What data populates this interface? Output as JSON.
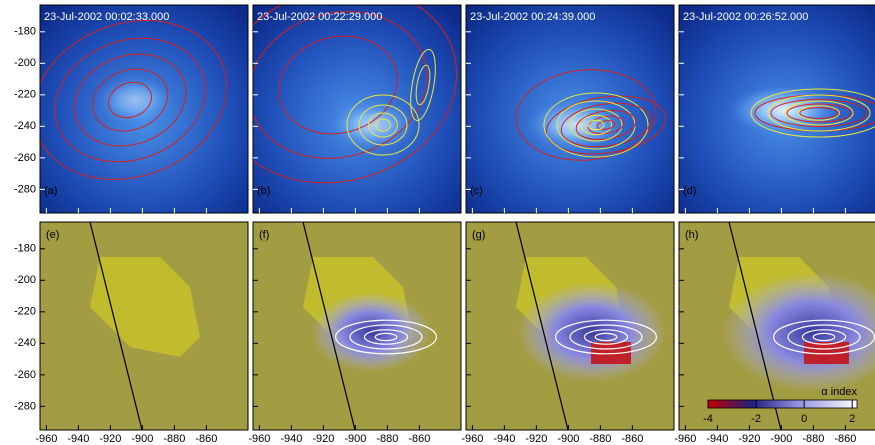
{
  "panels_top": [
    {
      "time": "23-Jul-2002 00:02:33.000",
      "label": "(a)"
    },
    {
      "time": "23-Jul-2002 00:22:29.000",
      "label": "(b)"
    },
    {
      "time": "23-Jul-2002 00:24:39.000",
      "label": "(c)"
    },
    {
      "time": "23-Jul-2002 00:26:52.000",
      "label": "(d)"
    }
  ],
  "panels_bottom": [
    {
      "label": "(e)"
    },
    {
      "label": "(f)"
    },
    {
      "label": "(g)"
    },
    {
      "label": "(h)"
    }
  ],
  "xlim": [
    -964,
    -834
  ],
  "ylim": [
    -295,
    -163
  ],
  "xticks": [
    -960,
    -940,
    -920,
    -900,
    -880,
    -860
  ],
  "yticks": [
    -180,
    -200,
    -220,
    -240,
    -260,
    -280
  ],
  "colorbar": {
    "label": "α index",
    "lim": [
      -4,
      2.2
    ],
    "ticks": [
      -4,
      -2,
      0,
      2
    ]
  }
}
